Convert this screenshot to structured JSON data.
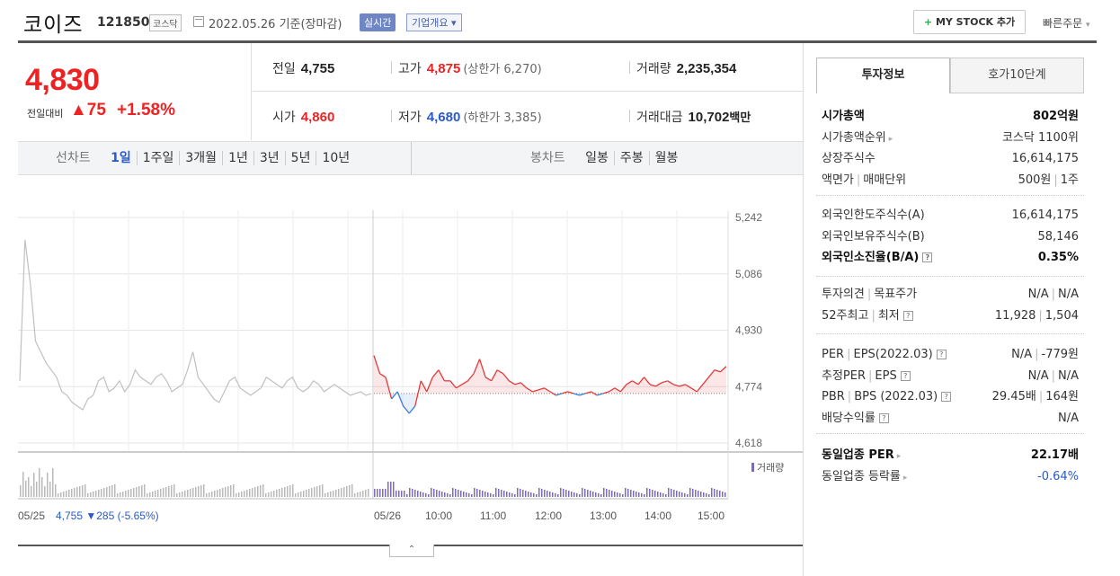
{
  "header": {
    "name": "코이즈",
    "code": "121850",
    "market": "코스닥",
    "date": "2022.05.26 기준(장마감)",
    "realtime": "실시간",
    "overview": "기업개요",
    "overview_arrow": "▾",
    "mystock_plus": "+",
    "mystock": "MY STOCK 추가",
    "quick_order": "빠른주문",
    "quick_arrow": "▾"
  },
  "price": {
    "current": "4,830",
    "prev_label": "전일대비",
    "change": "▲75",
    "percent": "+1.58%"
  },
  "stats": {
    "prev_label": "전일",
    "prev": "4,755",
    "high_label": "고가",
    "high": "4,875",
    "upper_limit": "(상한가 6,270)",
    "volume_label": "거래량",
    "volume": "2,235,354",
    "open_label": "시가",
    "open": "4,860",
    "low_label": "저가",
    "low": "4,680",
    "lower_limit": "(하한가 3,385)",
    "amount_label": "거래대금",
    "amount": "10,702",
    "amount_unit": "백만"
  },
  "periods": {
    "line_title": "선차트",
    "line_options": [
      "1일",
      "1주일",
      "3개월",
      "1년",
      "3년",
      "5년",
      "10년"
    ],
    "line_active": "1일",
    "candle_title": "봉차트",
    "candle_options": [
      "일봉",
      "주봉",
      "월봉"
    ]
  },
  "chart": {
    "y_ticks": [
      "5,242",
      "5,086",
      "4,930",
      "4,774",
      "4,618"
    ],
    "x_ticks": [
      "05/26",
      "10:00",
      "11:00",
      "12:00",
      "13:00",
      "14:00",
      "15:00"
    ],
    "left_date": "05/25",
    "prev_close_text": "4,755 ▼285 (-5.65%)",
    "volume_legend": "거래량",
    "colors": {
      "up": "#e23a3a",
      "down": "#3a7bd5",
      "prev": "#c0c0c0",
      "volume": "#7d6bb5"
    }
  },
  "chart_data": {
    "type": "line",
    "title": "",
    "ylim": [
      4618,
      5242
    ],
    "prev_close": 4755,
    "series": [
      {
        "name": "05/25",
        "values": [
          4790,
          5180,
          5060,
          4900,
          4870,
          4840,
          4820,
          4800,
          4760,
          4750,
          4730,
          4720,
          4710,
          4740,
          4750,
          4790,
          4800,
          4760,
          4770,
          4790,
          4760,
          4780,
          4820,
          4800,
          4790,
          4780,
          4800,
          4810,
          4790,
          4760,
          4770,
          4780,
          4820,
          4870,
          4800,
          4780,
          4760,
          4740,
          4730,
          4760,
          4790,
          4800,
          4770,
          4760,
          4750,
          4760,
          4770,
          4800,
          4790,
          4780,
          4770,
          4790,
          4800,
          4770,
          4760,
          4770,
          4790,
          4780,
          4760,
          4770,
          4780,
          4770,
          4760,
          4750,
          4755,
          4760,
          4750,
          4755
        ]
      },
      {
        "name": "05/26",
        "values": [
          4860,
          4810,
          4800,
          4740,
          4760,
          4720,
          4700,
          4720,
          4790,
          4760,
          4800,
          4820,
          4790,
          4790,
          4770,
          4780,
          4790,
          4810,
          4850,
          4800,
          4790,
          4820,
          4810,
          4790,
          4780,
          4785,
          4770,
          4760,
          4765,
          4770,
          4760,
          4750,
          4755,
          4760,
          4755,
          4750,
          4755,
          4760,
          4750,
          4755,
          4760,
          4770,
          4760,
          4780,
          4790,
          4780,
          4800,
          4780,
          4775,
          4785,
          4790,
          4780,
          4775,
          4780,
          4770,
          4760,
          4780,
          4800,
          4820,
          4815,
          4830
        ]
      }
    ]
  },
  "side": {
    "tab_invest": "투자정보",
    "tab_hoga": "호가10단계",
    "s1": [
      {
        "k": "시가총액",
        "v": "802억원",
        "bold": true
      },
      {
        "k": "시가총액순위",
        "v": "코스닥 1100위",
        "arrow": true
      },
      {
        "k": "상장주식수",
        "v": "16,614,175"
      },
      {
        "k": "액면가 | 매매단위",
        "v": "500원 | 1주"
      }
    ],
    "s2": [
      {
        "k": "외국인한도주식수(A)",
        "v": "16,614,175"
      },
      {
        "k": "외국인보유주식수(B)",
        "v": "58,146"
      },
      {
        "k": "외국인소진율(B/A)",
        "v": "0.35%",
        "bold": true,
        "q": true
      }
    ],
    "s3": [
      {
        "k": "투자의견 | 목표주가",
        "v": "N/A | N/A"
      },
      {
        "k": "52주최고 | 최저",
        "v": "11,928 | 1,504",
        "q": true
      }
    ],
    "s4": [
      {
        "k": "PER | EPS(2022.03)",
        "v": "N/A | -779원",
        "q": true
      },
      {
        "k": "추정PER | EPS",
        "v": "N/A | N/A",
        "q": true
      },
      {
        "k": "PBR | BPS (2022.03)",
        "v": "29.45배 | 164원",
        "q": true
      },
      {
        "k": "배당수익률",
        "v": "N/A",
        "q": true
      }
    ],
    "s5": [
      {
        "k": "동일업종 PER",
        "v": "22.17배",
        "bold": true,
        "arrow": true
      },
      {
        "k": "동일업종 등락률",
        "v": "-0.64%",
        "blue": true,
        "arrow": true
      }
    ]
  }
}
